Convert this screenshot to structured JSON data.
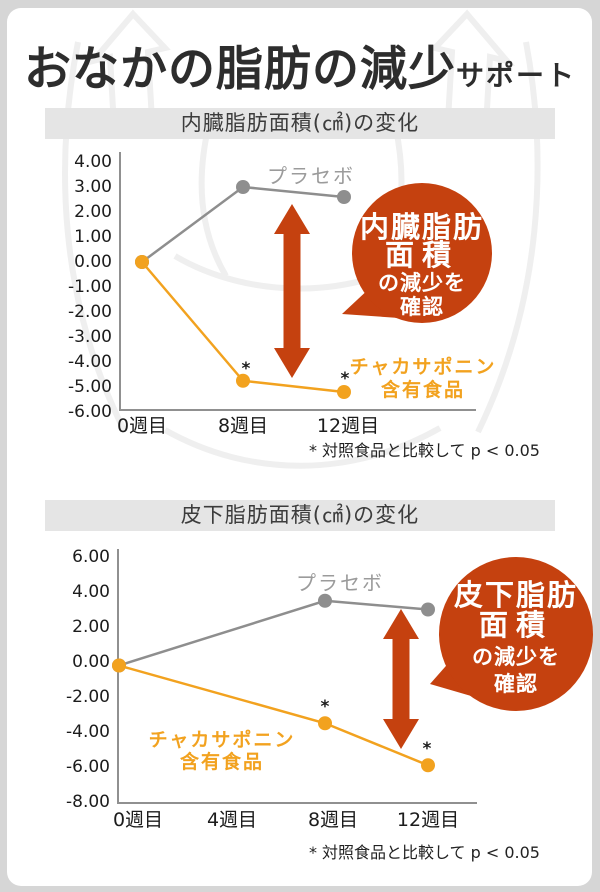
{
  "title": {
    "main": "おなかの脂肪の減少",
    "suffix": "サポート"
  },
  "colors": {
    "accent_red": "#c5410f",
    "line_orange": "#f2a21f",
    "line_gray": "#8e8e8e",
    "section_bar_bg": "#e5e5e5"
  },
  "charts": [
    {
      "section_title": "内臓脂肪面積(㎠)の変化",
      "y_ticks": [
        "4.00",
        "3.00",
        "2.00",
        "1.00",
        "0.00",
        "-1.00",
        "-2.00",
        "-3.00",
        "-4.00",
        "-5.00",
        "-6.00"
      ],
      "x_labels": [
        "0週目",
        "8週目",
        "12週目"
      ],
      "legend_placebo": "プラセボ",
      "legend_test_line1": "チャカサポニン",
      "legend_test_line2": "含有食品",
      "sig_marker": "*",
      "bubble_lines": [
        "内臓脂肪",
        "面積",
        "の減少を",
        "確認"
      ],
      "footnote": "* 対照食品と比較して p < 0.05"
    },
    {
      "section_title": "皮下脂肪面積(㎠)の変化",
      "y_ticks": [
        "6.00",
        "4.00",
        "2.00",
        "0.00",
        "-2.00",
        "-4.00",
        "-6.00",
        "-8.00"
      ],
      "x_labels": [
        "0週目",
        "4週目",
        "8週目",
        "12週目"
      ],
      "legend_placebo": "プラセボ",
      "legend_test_line1": "チャカサポニン",
      "legend_test_line2": "含有食品",
      "sig_marker": "*",
      "bubble_lines": [
        "皮下脂肪",
        "面積",
        "の減少を",
        "確認"
      ],
      "footnote": "* 対照食品と比較して p < 0.05"
    }
  ],
  "chart_data": [
    {
      "type": "line",
      "title": "内臓脂肪面積(㎠)の変化",
      "categories": [
        "0週目",
        "8週目",
        "12週目"
      ],
      "series": [
        {
          "name": "プラセボ",
          "color": "#8e8e8e",
          "values": [
            0.0,
            3.0,
            2.6
          ]
        },
        {
          "name": "チャカサポニン含有食品",
          "color": "#f2a21f",
          "values": [
            0.0,
            -4.75,
            -5.2
          ],
          "significant_points": [
            "8週目",
            "12週目"
          ]
        }
      ],
      "ylim": [
        -6,
        4
      ],
      "ytick_step": 1,
      "grid": false,
      "legend_position": "inline",
      "annotation": "内臓脂肪面積の減少を確認",
      "footnote": "* 対照食品と比較して p < 0.05"
    },
    {
      "type": "line",
      "title": "皮下脂肪面積(㎠)の変化",
      "categories": [
        "0週目",
        "4週目",
        "8週目",
        "12週目"
      ],
      "data_weeks": [
        0,
        8,
        12
      ],
      "series": [
        {
          "name": "プラセボ",
          "color": "#8e8e8e",
          "values_by_week": {
            "0": -0.2,
            "8": 3.5,
            "12": 3.0
          }
        },
        {
          "name": "チャカサポニン含有食品",
          "color": "#f2a21f",
          "values_by_week": {
            "0": -0.2,
            "8": -3.5,
            "12": -5.9
          },
          "significant_points": [
            "8週目",
            "12週目"
          ]
        }
      ],
      "ylim": [
        -8,
        6
      ],
      "ytick_step": 2,
      "grid": false,
      "legend_position": "inline",
      "annotation": "皮下脂肪面積の減少を確認",
      "footnote": "* 対照食品と比較して p < 0.05"
    }
  ]
}
